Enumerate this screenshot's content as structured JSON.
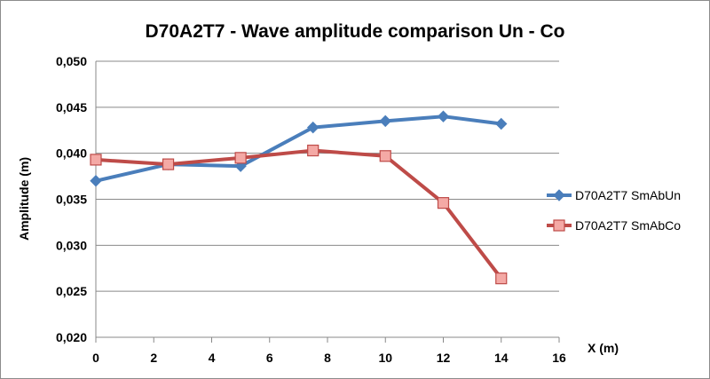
{
  "chart_data": {
    "type": "line",
    "title": "D70A2T7 - Wave amplitude comparison Un - Co",
    "xlabel": "X (m)",
    "ylabel": "Amplitude (m)",
    "xlim": [
      0,
      16
    ],
    "ylim": [
      0.02,
      0.05
    ],
    "x_ticks": [
      0,
      2,
      4,
      6,
      8,
      10,
      12,
      14,
      16
    ],
    "y_ticks": [
      "0,020",
      "0,025",
      "0,030",
      "0,035",
      "0,040",
      "0,045",
      "0,050"
    ],
    "grid": "horizontal",
    "legend_position": "right",
    "series": [
      {
        "name": "D70A2T7 SmAbUn",
        "color": "#4a7ebb",
        "marker": "diamond",
        "x": [
          0,
          2.5,
          5,
          7.5,
          10,
          12,
          14
        ],
        "y": [
          0.037,
          0.0388,
          0.0386,
          0.0428,
          0.0435,
          0.044,
          0.0432
        ]
      },
      {
        "name": "D70A2T7 SmAbCo",
        "color": "#be4b48",
        "marker": "square",
        "x": [
          0,
          2.5,
          5,
          7.5,
          10,
          12,
          14
        ],
        "y": [
          0.0393,
          0.0388,
          0.0395,
          0.0403,
          0.0397,
          0.0346,
          0.0264
        ]
      }
    ]
  }
}
